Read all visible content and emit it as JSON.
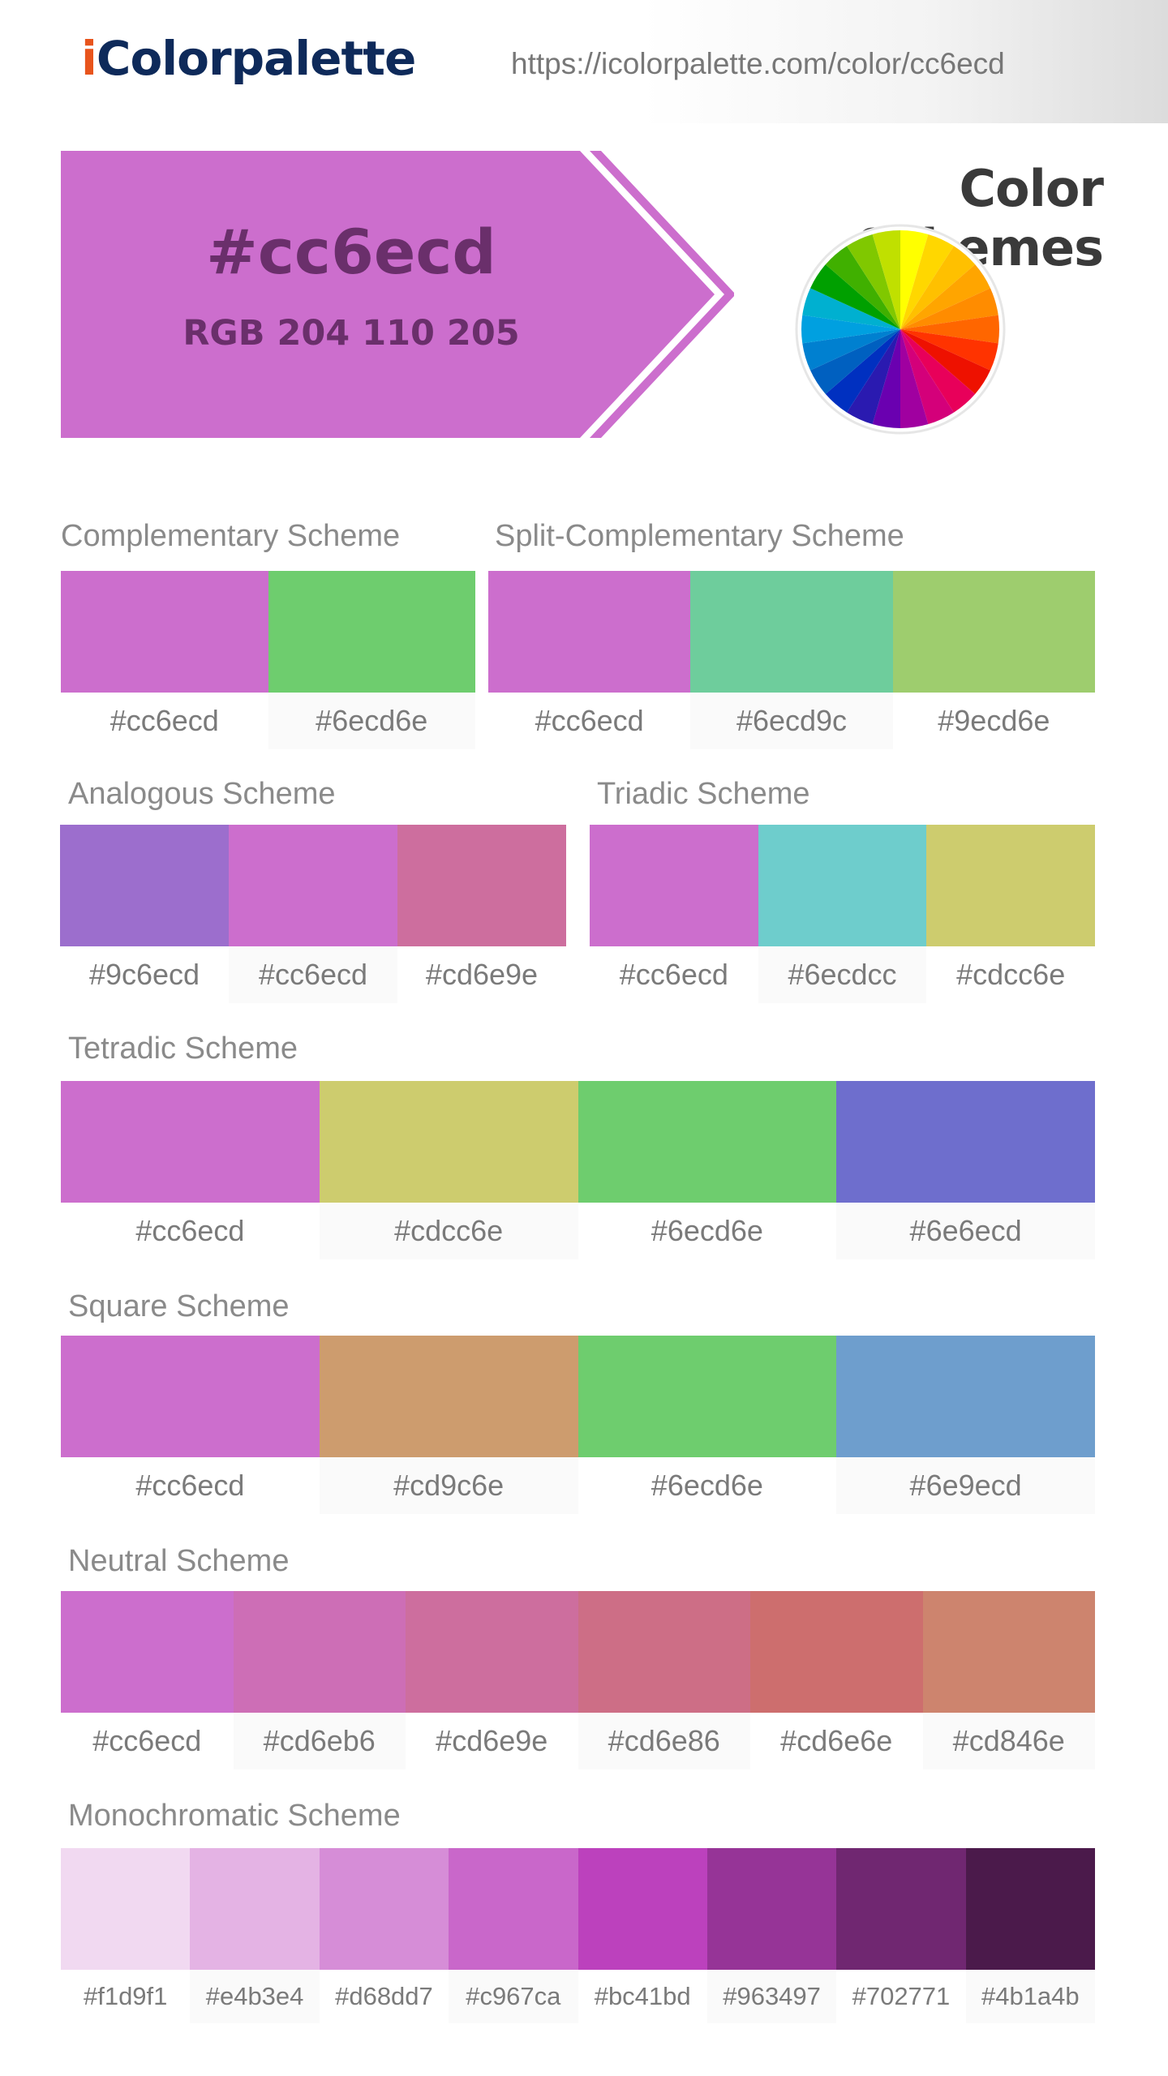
{
  "header": {
    "logo_i": "i",
    "logo_rest": "Colorpalette",
    "url": "https://icolorpalette.com/color/cc6ecd"
  },
  "hero": {
    "hex": "#cc6ecd",
    "rgb": "RGB 204 110 205",
    "color": "#cc6ecd"
  },
  "color_schemes_title": "Color Schemes",
  "wheel_colors": [
    "#ffff00",
    "#ffd700",
    "#ffc000",
    "#ffa500",
    "#ff8c00",
    "#ff6600",
    "#ff3300",
    "#ee1100",
    "#e8005a",
    "#d4007a",
    "#a000a0",
    "#6a00b0",
    "#2a1ab0",
    "#0030c0",
    "#0060c0",
    "#0080d0",
    "#00a0e0",
    "#00b0d0",
    "#00a000",
    "#40b000",
    "#80c800",
    "#c0e000"
  ],
  "schemes": {
    "complementary": {
      "title": "Complementary Scheme",
      "colors": [
        {
          "hex": "#cc6ecd",
          "label": "#cc6ecd"
        },
        {
          "hex": "#6ecd6e",
          "label": "#6ecd6e"
        }
      ]
    },
    "split": {
      "title": "Split-Complementary Scheme",
      "colors": [
        {
          "hex": "#cc6ecd",
          "label": "#cc6ecd"
        },
        {
          "hex": "#6ecd9c",
          "label": "#6ecd9c"
        },
        {
          "hex": "#9ecd6e",
          "label": "#9ecd6e"
        }
      ]
    },
    "analogous": {
      "title": "Analogous Scheme",
      "colors": [
        {
          "hex": "#9c6ecd",
          "label": "#9c6ecd"
        },
        {
          "hex": "#cc6ecd",
          "label": "#cc6ecd"
        },
        {
          "hex": "#cd6e9e",
          "label": "#cd6e9e"
        }
      ]
    },
    "triadic": {
      "title": "Triadic Scheme",
      "colors": [
        {
          "hex": "#cc6ecd",
          "label": "#cc6ecd"
        },
        {
          "hex": "#6ecdcc",
          "label": "#6ecdcc"
        },
        {
          "hex": "#cdcc6e",
          "label": "#cdcc6e"
        }
      ]
    },
    "tetradic": {
      "title": "Tetradic Scheme",
      "colors": [
        {
          "hex": "#cc6ecd",
          "label": "#cc6ecd"
        },
        {
          "hex": "#cdcc6e",
          "label": "#cdcc6e"
        },
        {
          "hex": "#6ecd6e",
          "label": "#6ecd6e"
        },
        {
          "hex": "#6e6ecd",
          "label": "#6e6ecd"
        }
      ]
    },
    "square": {
      "title": "Square Scheme",
      "colors": [
        {
          "hex": "#cc6ecd",
          "label": "#cc6ecd"
        },
        {
          "hex": "#cd9c6e",
          "label": "#cd9c6e"
        },
        {
          "hex": "#6ecd6e",
          "label": "#6ecd6e"
        },
        {
          "hex": "#6e9ecd",
          "label": "#6e9ecd"
        }
      ]
    },
    "neutral": {
      "title": "Neutral Scheme",
      "colors": [
        {
          "hex": "#cc6ecd",
          "label": "#cc6ecd"
        },
        {
          "hex": "#cd6eb6",
          "label": "#cd6eb6"
        },
        {
          "hex": "#cd6e9e",
          "label": "#cd6e9e"
        },
        {
          "hex": "#cd6e86",
          "label": "#cd6e86"
        },
        {
          "hex": "#cd6e6e",
          "label": "#cd6e6e"
        },
        {
          "hex": "#cd846e",
          "label": "#cd846e"
        }
      ]
    },
    "monochromatic": {
      "title": "Monochromatic Scheme",
      "colors": [
        {
          "hex": "#f1d9f1",
          "label": "#f1d9f1"
        },
        {
          "hex": "#e4b3e4",
          "label": "#e4b3e4"
        },
        {
          "hex": "#d68dd7",
          "label": "#d68dd7"
        },
        {
          "hex": "#c967ca",
          "label": "#c967ca"
        },
        {
          "hex": "#bc41bd",
          "label": "#bc41bd"
        },
        {
          "hex": "#963497",
          "label": "#963497"
        },
        {
          "hex": "#702771",
          "label": "#702771"
        },
        {
          "hex": "#4b1a4b",
          "label": "#4b1a4b"
        }
      ]
    }
  }
}
